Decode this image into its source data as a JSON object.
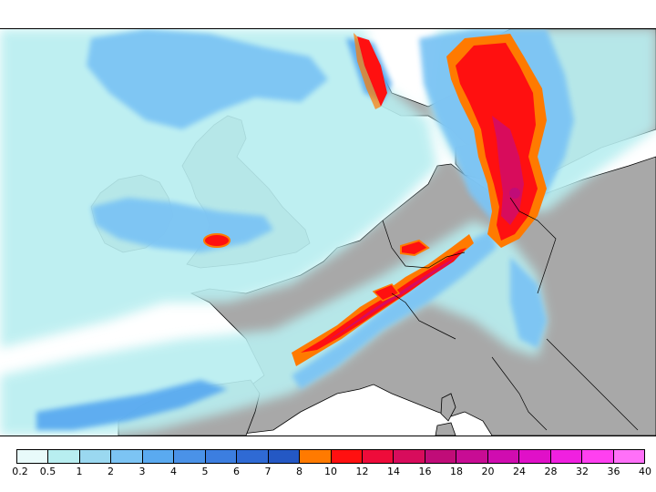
{
  "legend": {
    "ticks": [
      "0.2",
      "0.5",
      "1",
      "2",
      "3",
      "4",
      "5",
      "6",
      "7",
      "8",
      "10",
      "12",
      "14",
      "16",
      "18",
      "20",
      "24",
      "28",
      "32",
      "36",
      "40"
    ],
    "colors": [
      "#e8fafa",
      "#b8eef0",
      "#9ad8f0",
      "#7cc4f4",
      "#5aaaf0",
      "#4a92e8",
      "#3c7ee0",
      "#2f6ad4",
      "#2458c4",
      "#ff7a00",
      "#ff1010",
      "#ee0b3a",
      "#d80c5c",
      "#c00c78",
      "#c80c94",
      "#d00cb0",
      "#e010c8",
      "#f020e0",
      "#ff40f0",
      "#ff70f8"
    ]
  },
  "map": {
    "land_color": "#a8a8a8",
    "sea_color": "#ffffff"
  }
}
